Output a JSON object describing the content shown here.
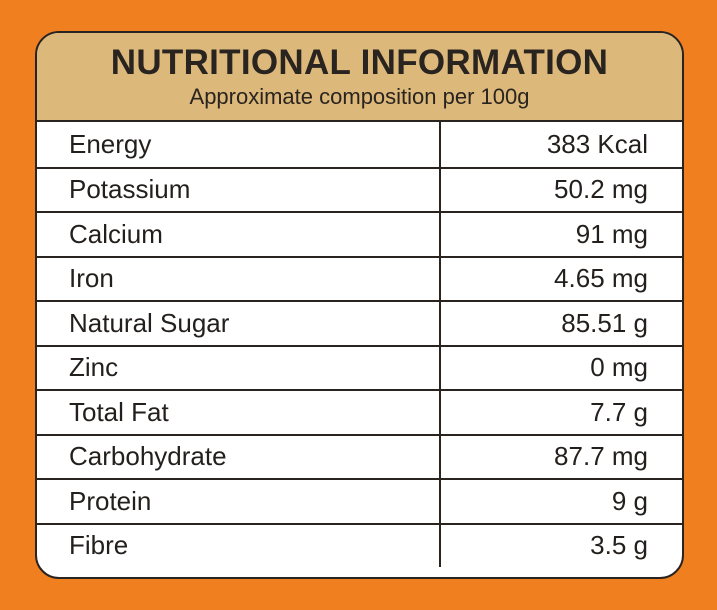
{
  "header": {
    "title": "NUTRITIONAL INFORMATION",
    "subtitle": "Approximate composition per 100g"
  },
  "table": {
    "rows": [
      [
        "Energy",
        "383 Kcal"
      ],
      [
        "Potassium",
        "50.2 mg"
      ],
      [
        "Calcium",
        "91 mg"
      ],
      [
        "Iron",
        "4.65 mg"
      ],
      [
        "Natural Sugar",
        "85.51 g"
      ],
      [
        "Zinc",
        "0 mg"
      ],
      [
        "Total Fat",
        "7.7 g"
      ],
      [
        "Carbohydrate",
        "87.7 mg"
      ],
      [
        "Protein",
        "9 g"
      ],
      [
        "Fibre",
        "3.5 g"
      ]
    ]
  }
}
